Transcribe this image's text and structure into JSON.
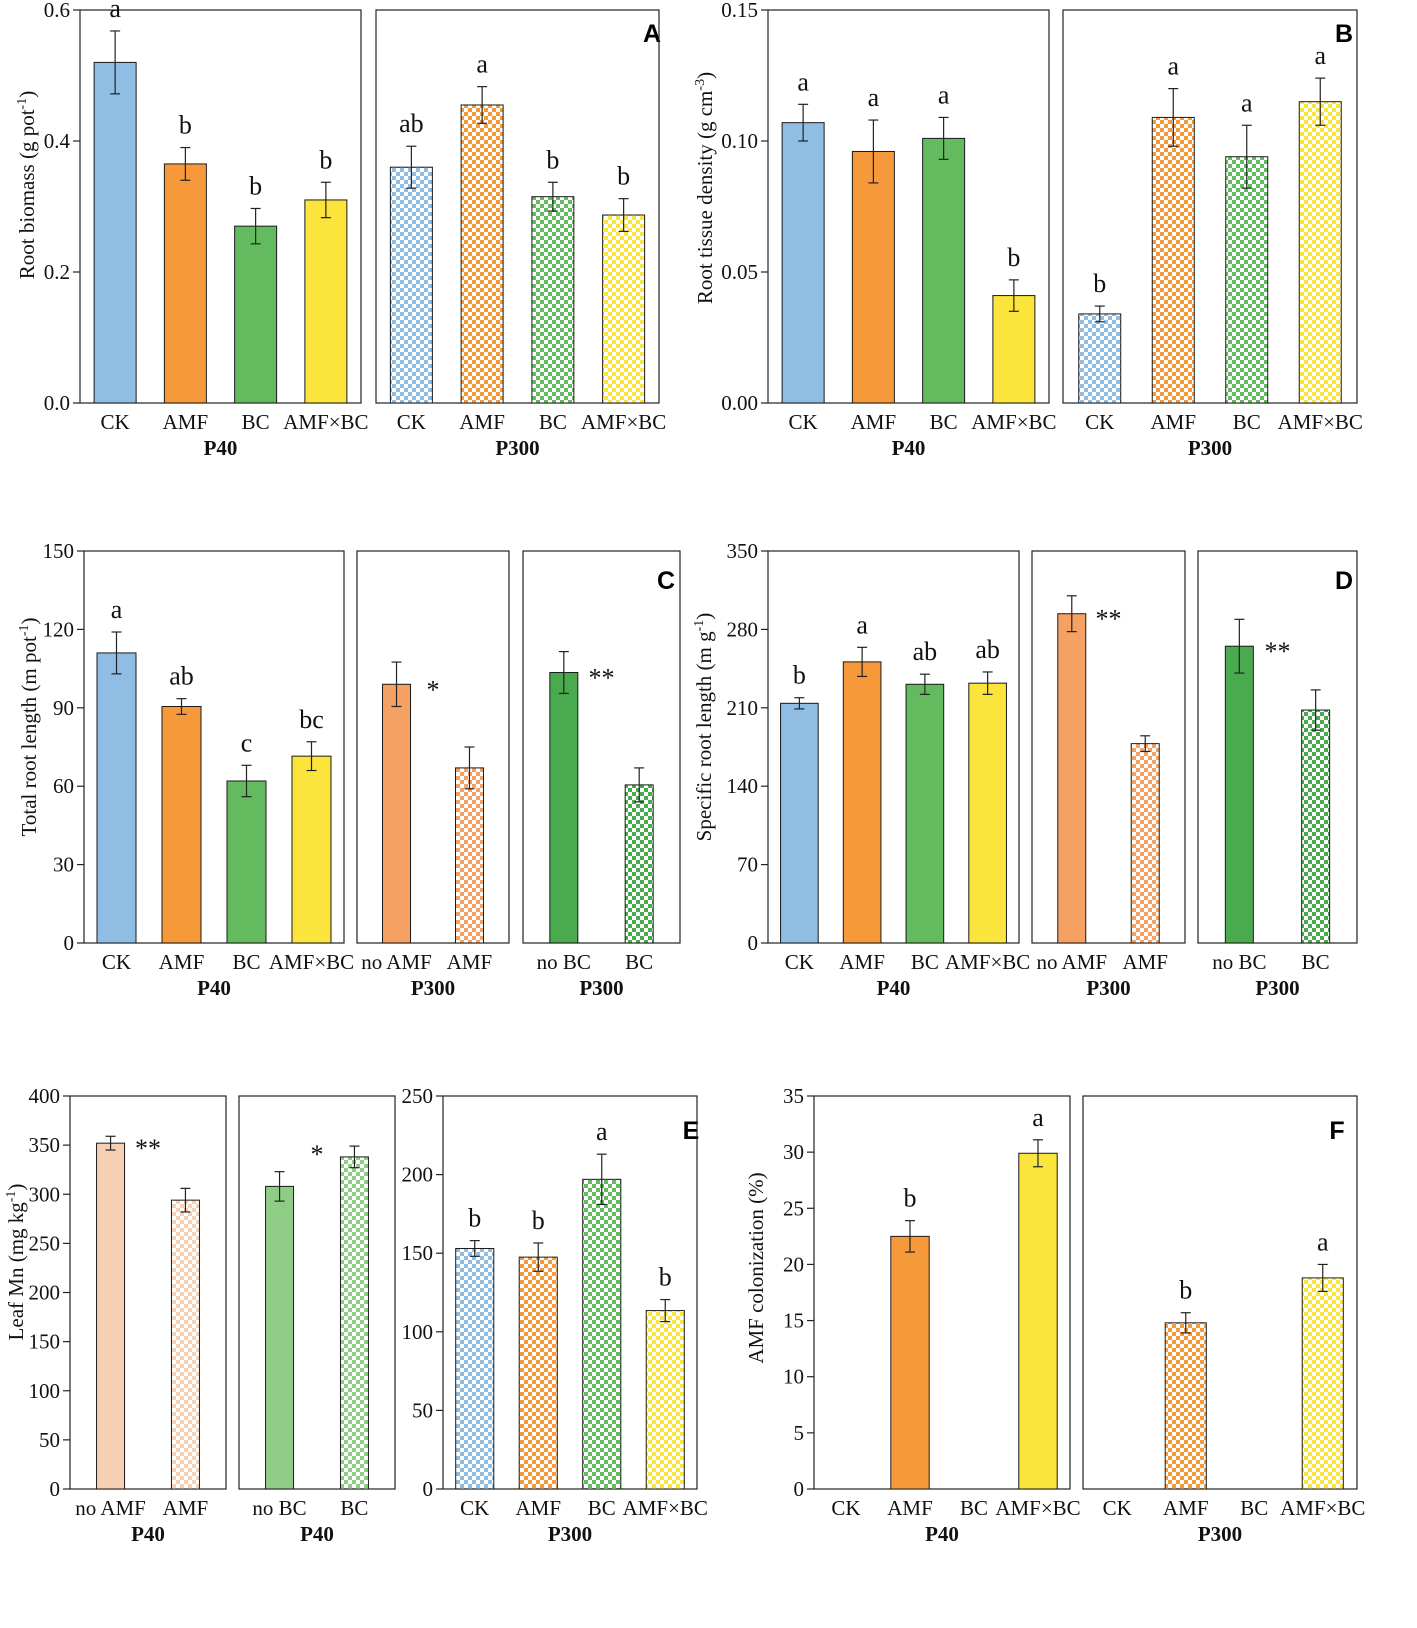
{
  "figure": {
    "panels": [
      {
        "label": "A",
        "ylabel": "Root biomass (g pot",
        "ylabel_sup": "-1",
        "ylabel_end": ")"
      },
      {
        "label": "B",
        "ylabel": "Root tissue density (g cm",
        "ylabel_sup": "-3",
        "ylabel_end": ")"
      },
      {
        "label": "C",
        "ylabel": "Total root length (m pot",
        "ylabel_sup": "-1",
        "ylabel_end": ")"
      },
      {
        "label": "D",
        "ylabel": "Specific root length (m g",
        "ylabel_sup": "-1",
        "ylabel_end": ")"
      },
      {
        "label": "E",
        "ylabel": "Leaf Mn (mg kg",
        "ylabel_sup": "-1",
        "ylabel_end": ")"
      },
      {
        "label": "F",
        "ylabel": "AMF colonization  (%)",
        "ylabel_sup": "",
        "ylabel_end": ""
      }
    ]
  },
  "colors": {
    "blue": "#8fbde3",
    "orange": "#f5993a",
    "green": "#64bb5f",
    "yellow": "#fbe43b",
    "lightorange": "#f5a163",
    "darkgreen": "#4aab4e",
    "peach": "#f7d0b4",
    "lightgreen": "#8fcd86",
    "outline": "#1a1a1a"
  },
  "chart_data": [
    {
      "id": "A",
      "type": "bar",
      "ylabel": "Root biomass (g pot-1)",
      "ylim": [
        0,
        0.6
      ],
      "yticks": [
        "0.0",
        "0.2",
        "0.4",
        "0.6"
      ],
      "subplots": [
        {
          "group": "P40",
          "categories": [
            "CK",
            "AMF",
            "BC",
            "AMF×BC"
          ],
          "values": [
            0.52,
            0.365,
            0.27,
            0.31
          ],
          "errors": [
            0.048,
            0.025,
            0.027,
            0.027
          ],
          "letters": [
            "a",
            "b",
            "b",
            "b"
          ],
          "colors": [
            "blue",
            "orange",
            "green",
            "yellow"
          ],
          "patterns": [
            "solid",
            "solid",
            "solid",
            "solid"
          ]
        },
        {
          "group": "P300",
          "categories": [
            "CK",
            "AMF",
            "BC",
            "AMF×BC"
          ],
          "values": [
            0.36,
            0.455,
            0.315,
            0.287
          ],
          "errors": [
            0.032,
            0.028,
            0.022,
            0.025
          ],
          "letters": [
            "ab",
            "a",
            "b",
            "b"
          ],
          "colors": [
            "blue",
            "orange",
            "green",
            "yellow"
          ],
          "patterns": [
            "check",
            "check",
            "check",
            "check"
          ]
        }
      ]
    },
    {
      "id": "B",
      "type": "bar",
      "ylabel": "Root tissue density (g cm-3)",
      "ylim": [
        0,
        0.15
      ],
      "yticks": [
        "0.00",
        "0.05",
        "0.10",
        "0.15"
      ],
      "subplots": [
        {
          "group": "P40",
          "categories": [
            "CK",
            "AMF",
            "BC",
            "AMF×BC"
          ],
          "values": [
            0.107,
            0.096,
            0.101,
            0.041
          ],
          "errors": [
            0.007,
            0.012,
            0.008,
            0.006
          ],
          "letters": [
            "a",
            "a",
            "a",
            "b"
          ],
          "colors": [
            "blue",
            "orange",
            "green",
            "yellow"
          ],
          "patterns": [
            "solid",
            "solid",
            "solid",
            "solid"
          ]
        },
        {
          "group": "P300",
          "categories": [
            "CK",
            "AMF",
            "BC",
            "AMF×BC"
          ],
          "values": [
            0.034,
            0.109,
            0.094,
            0.115
          ],
          "errors": [
            0.003,
            0.011,
            0.012,
            0.009
          ],
          "letters": [
            "b",
            "a",
            "a",
            "a"
          ],
          "colors": [
            "blue",
            "orange",
            "green",
            "yellow"
          ],
          "patterns": [
            "check",
            "check",
            "check",
            "check"
          ]
        }
      ]
    },
    {
      "id": "C",
      "type": "bar",
      "ylabel": "Total root length (m pot-1)",
      "ylim": [
        0,
        150
      ],
      "yticks": [
        "0",
        "30",
        "60",
        "90",
        "120",
        "150"
      ],
      "subplots": [
        {
          "group": "P40",
          "categories": [
            "CK",
            "AMF",
            "BC",
            "AMF×BC"
          ],
          "values": [
            111,
            90.5,
            62,
            71.5
          ],
          "errors": [
            8,
            3,
            6,
            5.5
          ],
          "letters": [
            "a",
            "ab",
            "c",
            "bc"
          ],
          "colors": [
            "blue",
            "orange",
            "green",
            "yellow"
          ],
          "patterns": [
            "solid",
            "solid",
            "solid",
            "solid"
          ]
        },
        {
          "group": "P300",
          "categories": [
            "no AMF",
            "AMF"
          ],
          "values": [
            99,
            67
          ],
          "errors": [
            8.5,
            8
          ],
          "letters": [
            "",
            ""
          ],
          "star": "*",
          "colors": [
            "lightorange",
            "lightorange"
          ],
          "patterns": [
            "solid",
            "check"
          ]
        },
        {
          "group": "P300",
          "categories": [
            "no BC",
            "BC"
          ],
          "values": [
            103.5,
            60.5
          ],
          "errors": [
            8,
            6.5
          ],
          "letters": [
            "",
            ""
          ],
          "star": "**",
          "colors": [
            "darkgreen",
            "darkgreen"
          ],
          "patterns": [
            "solid",
            "check"
          ]
        }
      ]
    },
    {
      "id": "D",
      "type": "bar",
      "ylabel": "Specific root length (m g-1)",
      "ylim": [
        0,
        350
      ],
      "yticks": [
        "0",
        "70",
        "140",
        "210",
        "280",
        "350"
      ],
      "subplots": [
        {
          "group": "P40",
          "categories": [
            "CK",
            "AMF",
            "BC",
            "AMF×BC"
          ],
          "values": [
            214,
            251,
            231,
            232
          ],
          "errors": [
            5,
            13,
            9,
            10
          ],
          "letters": [
            "b",
            "a",
            "ab",
            "ab"
          ],
          "colors": [
            "blue",
            "orange",
            "green",
            "yellow"
          ],
          "patterns": [
            "solid",
            "solid",
            "solid",
            "solid"
          ]
        },
        {
          "group": "P300",
          "categories": [
            "no AMF",
            "AMF"
          ],
          "values": [
            294,
            178
          ],
          "errors": [
            16,
            7
          ],
          "letters": [
            "",
            ""
          ],
          "star": "**",
          "colors": [
            "lightorange",
            "lightorange"
          ],
          "patterns": [
            "solid",
            "check"
          ]
        },
        {
          "group": "P300",
          "categories": [
            "no BC",
            "BC"
          ],
          "values": [
            265,
            208
          ],
          "errors": [
            24,
            18
          ],
          "letters": [
            "",
            ""
          ],
          "star": "**",
          "colors": [
            "darkgreen",
            "darkgreen"
          ],
          "patterns": [
            "solid",
            "check"
          ]
        }
      ]
    },
    {
      "id": "E",
      "type": "bar",
      "ylabel": "Leaf Mn (mg kg-1)",
      "ylim": [
        0,
        400
      ],
      "yticks": [
        "0",
        "50",
        "100",
        "150",
        "200",
        "250",
        "300",
        "350",
        "400"
      ],
      "subplots": [
        {
          "group": "P40",
          "categories": [
            "no AMF",
            "AMF"
          ],
          "values": [
            352,
            294
          ],
          "errors": [
            7,
            12
          ],
          "letters": [
            "",
            ""
          ],
          "star": "**",
          "colors": [
            "peach",
            "peach"
          ],
          "patterns": [
            "solid",
            "check"
          ]
        },
        {
          "group": "P40",
          "categories": [
            "no BC",
            "BC"
          ],
          "values": [
            308,
            338
          ],
          "errors": [
            15,
            11
          ],
          "letters": [
            "",
            ""
          ],
          "star": "*",
          "colors": [
            "lightgreen",
            "lightgreen"
          ],
          "patterns": [
            "solid",
            "check"
          ]
        },
        {
          "group": "P300",
          "categories": [
            "CK",
            "AMF",
            "BC",
            "AMF×BC"
          ],
          "values": [
            153,
            147.5,
            197,
            113.5
          ],
          "errors": [
            5,
            9,
            16,
            7
          ],
          "letters": [
            "b",
            "b",
            "a",
            "b"
          ],
          "colors": [
            "blue",
            "orange",
            "green",
            "yellow"
          ],
          "patterns": [
            "check",
            "check",
            "check",
            "check"
          ],
          "ylim": [
            0,
            250
          ],
          "yticks": [
            "0",
            "50",
            "100",
            "150",
            "200",
            "250"
          ]
        }
      ]
    },
    {
      "id": "F",
      "type": "bar",
      "ylabel": "AMF colonization  (%)",
      "ylim": [
        0,
        35
      ],
      "yticks": [
        "0",
        "5",
        "10",
        "15",
        "20",
        "25",
        "30",
        "35"
      ],
      "subplots": [
        {
          "group": "P40",
          "categories": [
            "CK",
            "AMF",
            "BC",
            "AMF×BC"
          ],
          "values": [
            0,
            22.5,
            0,
            29.9
          ],
          "errors": [
            0,
            1.4,
            0,
            1.2
          ],
          "letters": [
            "",
            "b",
            "",
            "a"
          ],
          "colors": [
            "blue",
            "orange",
            "green",
            "yellow"
          ],
          "patterns": [
            "solid",
            "solid",
            "solid",
            "solid"
          ]
        },
        {
          "group": "P300",
          "categories": [
            "CK",
            "AMF",
            "BC",
            "AMF×BC"
          ],
          "values": [
            0,
            14.8,
            0,
            18.8
          ],
          "errors": [
            0,
            0.9,
            0,
            1.2
          ],
          "letters": [
            "",
            "b",
            "",
            "a"
          ],
          "colors": [
            "blue",
            "orange",
            "green",
            "yellow"
          ],
          "patterns": [
            "check",
            "check",
            "check",
            "check"
          ]
        }
      ]
    }
  ]
}
